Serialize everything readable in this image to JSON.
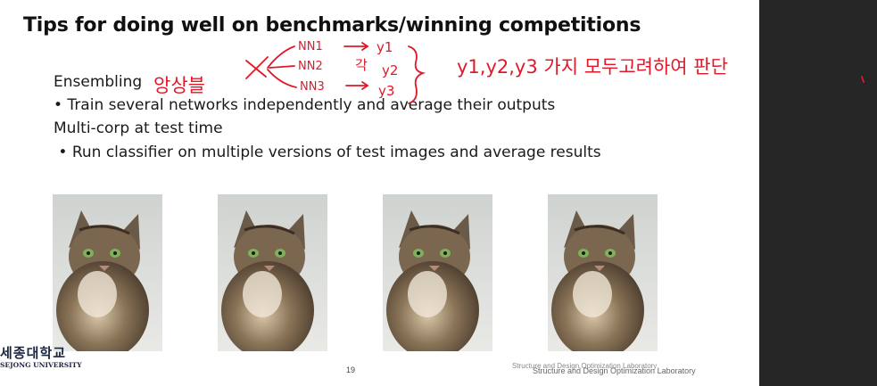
{
  "slide": {
    "title": "Tips for doing well on benchmarks/winning competitions",
    "lines": [
      "Ensembling",
      "• Train several networks independently and average their outputs",
      "Multi-corp at test time",
      " • Run classifier on multiple versions of test images and average results"
    ],
    "page_number": "19",
    "footer_lab_faded": "Structure and Design Optimization Laboratory",
    "footer_lab": "Structure and Design Optimization Laboratory",
    "logo_korean": "세종대학교",
    "logo_english": "SEJONG UNIVERSITY"
  },
  "handwriting": {
    "ensemble_korean": "앙상블",
    "nn1": "NN1",
    "nn2": "NN2",
    "nn3": "NN3",
    "each": "각",
    "y1": "y1",
    "y2": "y2",
    "y3": "y3",
    "summary": "y1,y2,y3 가지 모두고려하여 판단"
  },
  "images": [
    {
      "alt": "fluffy long-haired cat photo"
    },
    {
      "alt": "fluffy long-haired cat photo"
    },
    {
      "alt": "fluffy long-haired cat photo"
    },
    {
      "alt": "fluffy long-haired cat photo"
    }
  ],
  "colors": {
    "ink_red": "#e0192a",
    "side_panel": "#262626",
    "logo_navy": "#1b2540"
  }
}
